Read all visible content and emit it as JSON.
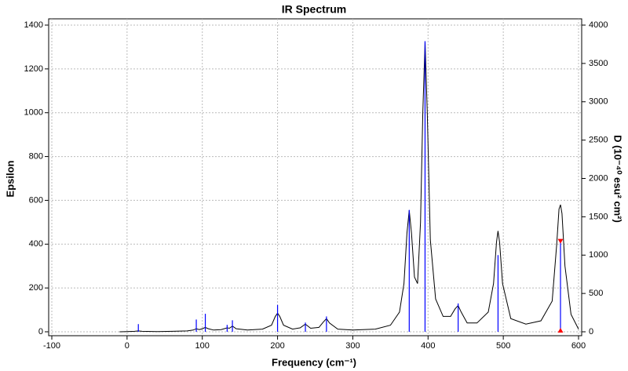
{
  "chart_data": {
    "type": "line",
    "title": "IR Spectrum",
    "x_label": "Frequency (cm⁻¹)",
    "y_label": "Epsilon",
    "y2_label": "D (10⁻⁴⁰ esu² cm²)",
    "xlim": [
      -100,
      600
    ],
    "xticks": [
      -100,
      0,
      100,
      200,
      300,
      400,
      500,
      600
    ],
    "ylim": [
      0,
      1400
    ],
    "yticks": [
      0,
      200,
      400,
      600,
      800,
      1000,
      1200,
      1400
    ],
    "y2lim": [
      0,
      4000
    ],
    "y2ticks": [
      0,
      500,
      1000,
      1500,
      2000,
      2500,
      3000,
      3500,
      4000
    ],
    "grid": true,
    "series": [
      {
        "type": "line",
        "color": "#000000",
        "x": [
          -10,
          0,
          10,
          15,
          20,
          40,
          60,
          80,
          88,
          92,
          96,
          100,
          104,
          108,
          115,
          125,
          133,
          136,
          140,
          145,
          160,
          180,
          192,
          197,
          200,
          203,
          208,
          220,
          230,
          237,
          244,
          255,
          261,
          265,
          269,
          280,
          300,
          330,
          350,
          362,
          368,
          372,
          375,
          378,
          382,
          386,
          390,
          393,
          396,
          399,
          403,
          410,
          420,
          430,
          436,
          440,
          444,
          452,
          465,
          480,
          487,
          491,
          493,
          495,
          499,
          510,
          530,
          550,
          565,
          571,
          574,
          576,
          578,
          582,
          590,
          600
        ],
        "values": [
          0,
          1,
          2,
          4,
          2,
          1,
          2,
          4,
          8,
          14,
          10,
          14,
          20,
          14,
          8,
          10,
          18,
          16,
          26,
          14,
          8,
          12,
          30,
          70,
          85,
          70,
          30,
          12,
          18,
          35,
          16,
          20,
          45,
          60,
          40,
          12,
          8,
          12,
          30,
          90,
          220,
          450,
          555,
          450,
          250,
          220,
          500,
          1000,
          1325,
          1000,
          420,
          150,
          70,
          70,
          105,
          120,
          90,
          40,
          40,
          90,
          220,
          410,
          460,
          410,
          220,
          60,
          35,
          50,
          140,
          400,
          560,
          580,
          540,
          300,
          80,
          12
        ]
      },
      {
        "type": "stick",
        "axis": "y2",
        "color": "#0000ff",
        "highlight": 12,
        "highlight_color": "#ff0000",
        "x": [
          15,
          92,
          104,
          133,
          140,
          200,
          237,
          265,
          375,
          396,
          440,
          493,
          576
        ],
        "values": [
          100,
          160,
          235,
          90,
          150,
          350,
          120,
          200,
          1590,
          3790,
          370,
          1000,
          1180
        ]
      }
    ]
  }
}
